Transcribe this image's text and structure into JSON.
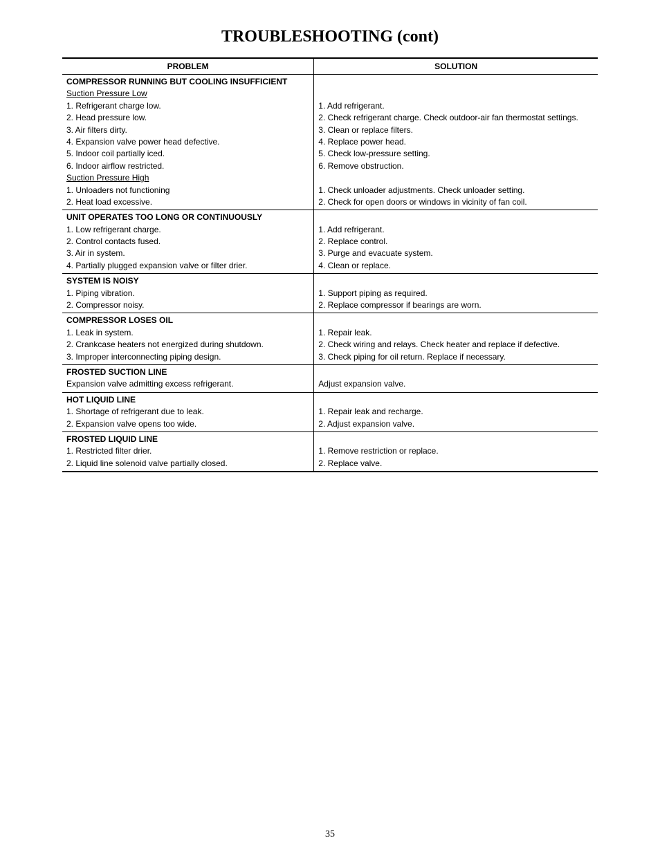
{
  "title": "TROUBLESHOOTING (cont)",
  "headers": {
    "problem": "PROBLEM",
    "solution": "SOLUTION"
  },
  "sections": [
    {
      "header": "COMPRESSOR RUNNING BUT COOLING INSUFFICIENT",
      "subgroups": [
        {
          "sub": "Suction Pressure Low",
          "items": [
            {
              "p": "1.  Refrigerant charge low.",
              "s": "1.  Add refrigerant."
            },
            {
              "p": "2.  Head pressure low.",
              "s": "2.  Check refrigerant charge. Check outdoor-air fan thermostat settings."
            },
            {
              "p": "3.  Air filters dirty.",
              "s": "3.  Clean or replace filters."
            },
            {
              "p": "4.  Expansion valve power head defective.",
              "s": "4.  Replace power head."
            },
            {
              "p": "5.  Indoor coil partially iced.",
              "s": "5.  Check low-pressure setting."
            },
            {
              "p": "6.  Indoor airflow restricted.",
              "s": "6.  Remove obstruction."
            }
          ]
        },
        {
          "sub": "Suction Pressure High",
          "items": [
            {
              "p": "1. Unloaders not functioning",
              "s": "1. Check unloader adjustments. Check unloader setting."
            },
            {
              "p": "2.  Heat load excessive.",
              "s": "2.  Check for open doors or windows in vicinity of fan coil."
            }
          ]
        }
      ]
    },
    {
      "header": "UNIT OPERATES TOO LONG OR CONTINUOUSLY",
      "subgroups": [
        {
          "sub": "",
          "items": [
            {
              "p": "1.  Low refrigerant charge.",
              "s": "1.  Add refrigerant."
            },
            {
              "p": "2.  Control contacts fused.",
              "s": "2.  Replace control."
            },
            {
              "p": "3.  Air in system.",
              "s": "3.  Purge and evacuate system."
            },
            {
              "p": "4.  Partially plugged expansion valve or filter drier.",
              "s": "4.  Clean or replace."
            }
          ]
        }
      ]
    },
    {
      "header": "SYSTEM IS NOISY",
      "subgroups": [
        {
          "sub": "",
          "items": [
            {
              "p": "1.  Piping vibration.",
              "s": "1.  Support piping as required."
            },
            {
              "p": "2.  Compressor noisy.",
              "s": "2.  Replace compressor if bearings are worn."
            }
          ]
        }
      ]
    },
    {
      "header": "COMPRESSOR LOSES OIL",
      "subgroups": [
        {
          "sub": "",
          "items": [
            {
              "p": "1.  Leak in system.",
              "s": "1.  Repair leak."
            },
            {
              "p": "2.  Crankcase heaters not energized during shutdown.",
              "s": "2.  Check wiring and relays. Check heater and replace if defective."
            },
            {
              "p": "3.  Improper interconnecting piping design.",
              "s": "3.  Check piping for oil return. Replace if necessary."
            }
          ]
        }
      ]
    },
    {
      "header": "FROSTED SUCTION LINE",
      "subgroups": [
        {
          "sub": "",
          "items": [
            {
              "p": "Expansion valve admitting excess refrigerant.",
              "s": "Adjust expansion valve."
            }
          ]
        }
      ]
    },
    {
      "header": "HOT LIQUID LINE",
      "subgroups": [
        {
          "sub": "",
          "items": [
            {
              "p": "1.  Shortage of refrigerant due to leak.",
              "s": "1.  Repair leak and recharge."
            },
            {
              "p": "2.  Expansion valve opens too wide.",
              "s": "2.  Adjust expansion valve."
            }
          ]
        }
      ]
    },
    {
      "header": "FROSTED LIQUID LINE",
      "subgroups": [
        {
          "sub": "",
          "items": [
            {
              "p": "1.  Restricted filter drier.",
              "s": "1.  Remove restriction or replace."
            },
            {
              "p": "2.  Liquid line solenoid valve partially closed.",
              "s": "2.  Replace valve."
            }
          ]
        }
      ]
    }
  ],
  "pageNumber": "35"
}
